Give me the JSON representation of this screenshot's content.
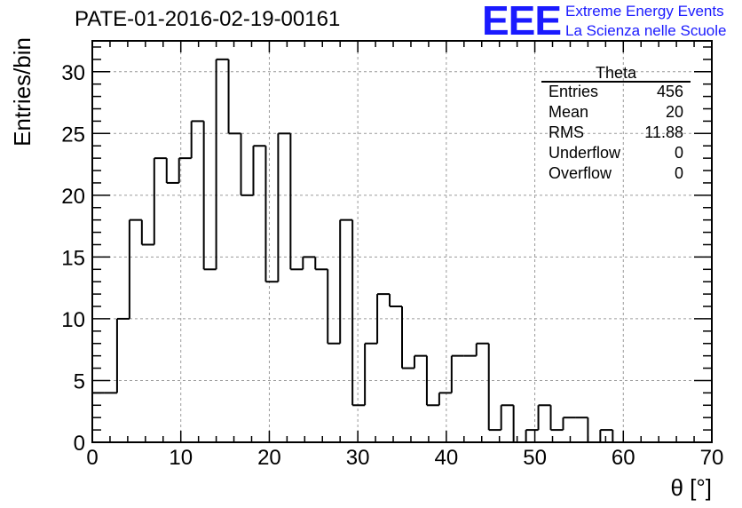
{
  "header": {
    "title": "PATE-01-2016-02-19-00161",
    "logo_mark": "EEE",
    "logo_line1": "Extreme Energy Events",
    "logo_line2": "La Scienza nelle Scuole"
  },
  "colors": {
    "logo": "#1a1aff",
    "line": "#000000",
    "grid": "#9a9a9a"
  },
  "stats_box": {
    "title": "Theta",
    "rows": [
      {
        "name": "Entries",
        "value": "456"
      },
      {
        "name": "Mean",
        "value": "20"
      },
      {
        "name": "RMS",
        "value": "11.88"
      },
      {
        "name": "Underflow",
        "value": "0"
      },
      {
        "name": "Overflow",
        "value": "0"
      }
    ]
  },
  "chart_data": {
    "type": "bar",
    "style": "step-histogram",
    "xlabel": "θ [°]",
    "ylabel": "Entries/bin",
    "xlim": [
      0,
      70
    ],
    "ylim": [
      0,
      32.5
    ],
    "xticks": [
      0,
      10,
      20,
      30,
      40,
      50,
      60,
      70
    ],
    "yticks": [
      0,
      5,
      10,
      15,
      20,
      25,
      30
    ],
    "grid": true,
    "bin_width": 1.4,
    "values": [
      4,
      4,
      10,
      18,
      16,
      23,
      21,
      23,
      26,
      14,
      31,
      25,
      20,
      24,
      13,
      25,
      14,
      15,
      14,
      8,
      18,
      3,
      8,
      12,
      11,
      6,
      7,
      3,
      4,
      7,
      7,
      8,
      1,
      3,
      0,
      1,
      3,
      1,
      2,
      2,
      0,
      1,
      0,
      0,
      0,
      0,
      0,
      0,
      0,
      0
    ]
  }
}
